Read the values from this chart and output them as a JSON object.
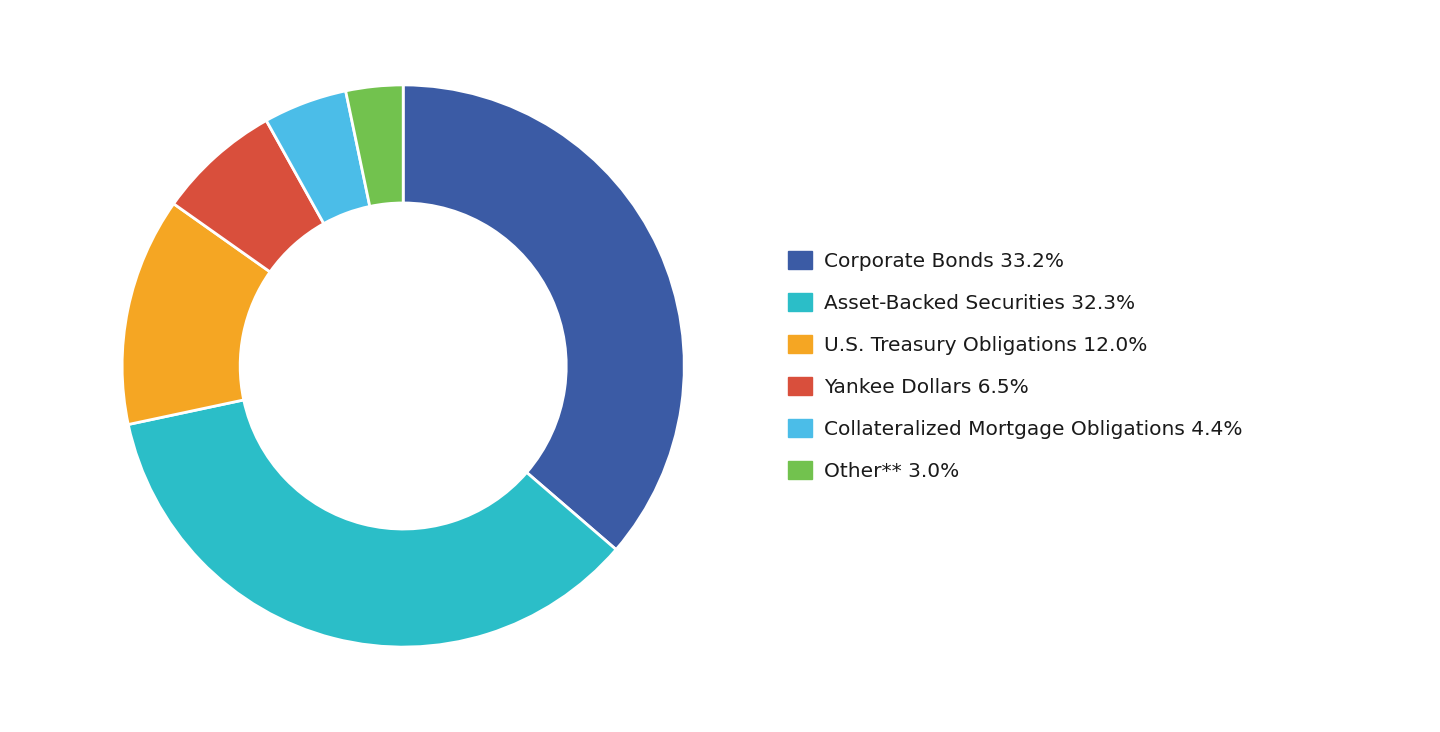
{
  "labels": [
    "Corporate Bonds 33.2%",
    "Asset-Backed Securities 32.3%",
    "U.S. Treasury Obligations 12.0%",
    "Yankee Dollars 6.5%",
    "Collateralized Mortgage Obligations 4.4%",
    "Other** 3.0%"
  ],
  "values": [
    33.2,
    32.3,
    12.0,
    6.5,
    4.4,
    3.0
  ],
  "colors": [
    "#3B5BA5",
    "#2BBEC8",
    "#F5A623",
    "#D94F3C",
    "#4BBDE8",
    "#72C24E"
  ],
  "background_color": "#ffffff",
  "legend_fontsize": 14.5,
  "donut_width": 0.42,
  "startangle": 90
}
